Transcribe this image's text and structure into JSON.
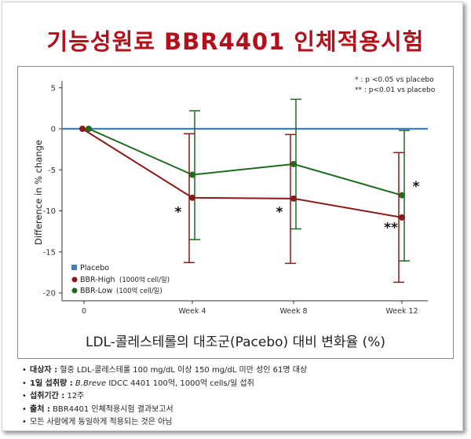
{
  "title": "기능성원료 BBR4401 인체적용시험",
  "significance_notes": [
    "* : p <0.05 vs placebo",
    "** : p<0.01 vs placebo"
  ],
  "x_caption": "LDL-콜레스테롤의 대조군(Pacebo) 대비 변화율 (%)",
  "colors": {
    "placebo": "#3a7fc7",
    "high": "#8b1a1a",
    "low": "#1e6b1e",
    "title": "#b3101c"
  },
  "chart_data": {
    "type": "line",
    "x": [
      "0",
      "Week 4",
      "Week 8",
      "Week 12"
    ],
    "ylabel": "Difference in % change",
    "ylim": [
      -21,
      6
    ],
    "yticks": [
      5,
      0,
      -5,
      -10,
      -15,
      -20
    ],
    "grid": false,
    "legend_position": "bottom-left",
    "series": [
      {
        "key": "placebo",
        "name": "Placebo",
        "values": [
          0,
          0,
          0,
          0
        ],
        "err": [
          null,
          null,
          null,
          null
        ],
        "marker": "square"
      },
      {
        "key": "high",
        "name": "BBR-High",
        "note": "(1000억 cell/일)",
        "values": [
          0,
          -8.4,
          -8.5,
          -10.8
        ],
        "err": [
          null,
          [
            -16.3,
            -0.6
          ],
          [
            -16.4,
            -0.7
          ],
          [
            -18.7,
            -2.9
          ]
        ],
        "marker": "circle"
      },
      {
        "key": "low",
        "name": "BBR-Low",
        "note": "(100억 cell/일)",
        "values": [
          0,
          -5.6,
          -4.3,
          -8.1
        ],
        "err": [
          null,
          [
            -13.5,
            2.2
          ],
          [
            -12.2,
            3.6
          ],
          [
            -16.1,
            -0.2
          ]
        ],
        "marker": "circle"
      }
    ],
    "annotations": [
      {
        "x": "Week 4",
        "y": -9.9,
        "text": "*",
        "series": "high"
      },
      {
        "x": "Week 8",
        "y": -9.9,
        "text": "*",
        "series": "high"
      },
      {
        "x": "Week 12",
        "y": -11.8,
        "text": "**",
        "series": "high"
      },
      {
        "x": "Week 12",
        "y": -6.8,
        "text": "*",
        "series": "low"
      }
    ]
  },
  "notes": [
    {
      "label": "대상자 :",
      "text": " 혈중 LDL-콜레스테롤 100 mg/dL 이상 150 mg/dL 미만 성인 61명 대상"
    },
    {
      "label": "1일 섭취량 :",
      "italic": " B.Breve",
      "text": " IDCC 4401 100억, 1000억 cells/일 섭취"
    },
    {
      "label": "섭취기간 :",
      "text": " 12주"
    },
    {
      "label": "출처 :",
      "text": " BBR4401 인체적용시험 결과보고서"
    },
    {
      "label": "",
      "text": "모든 사람에게 동일하게 적용되는 것은 아님"
    }
  ]
}
